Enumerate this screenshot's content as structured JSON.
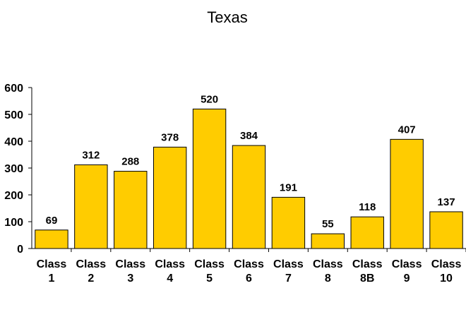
{
  "chart_data": {
    "type": "bar",
    "title": "Texas",
    "xlabel": "",
    "ylabel": "",
    "categories": [
      [
        "Class",
        "1"
      ],
      [
        "Class",
        "2"
      ],
      [
        "Class",
        "3"
      ],
      [
        "Class",
        "4"
      ],
      [
        "Class",
        "5"
      ],
      [
        "Class",
        "6"
      ],
      [
        "Class",
        "7"
      ],
      [
        "Class",
        "8"
      ],
      [
        "Class",
        "8B"
      ],
      [
        "Class",
        "9"
      ],
      [
        "Class",
        "10"
      ]
    ],
    "values": [
      69,
      312,
      288,
      378,
      520,
      384,
      191,
      55,
      118,
      407,
      137
    ],
    "data_labels": [
      "69",
      "312",
      "288",
      "378",
      "520",
      "384",
      "191",
      "55",
      "118",
      "407",
      "137"
    ],
    "y_ticks": [
      0,
      100,
      200,
      300,
      400,
      500,
      600
    ],
    "ylim": [
      0,
      600
    ],
    "grid": false,
    "legend": "none",
    "colors": {
      "bar_fill": "#FFCC00",
      "bar_stroke": "#000000",
      "axis": "#000000",
      "text": "#000000"
    }
  }
}
